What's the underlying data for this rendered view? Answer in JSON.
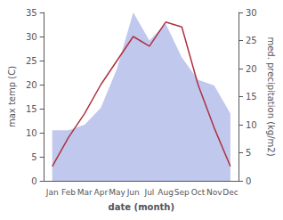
{
  "chart_data": {
    "type": "line",
    "categories": [
      "Jan",
      "Feb",
      "Mar",
      "Apr",
      "May",
      "Jun",
      "Jul",
      "Aug",
      "Sep",
      "Oct",
      "Nov",
      "Dec"
    ],
    "series": [
      {
        "type": "area",
        "color": "#c0c8ee",
        "axis": "y2",
        "values": [
          9,
          9,
          10,
          13,
          20,
          30,
          25,
          28,
          22,
          18,
          17,
          12
        ]
      },
      {
        "type": "line",
        "color": "#b03040",
        "values": [
          3,
          9,
          14,
          20,
          25,
          30,
          28,
          33,
          32,
          20,
          11,
          3
        ]
      }
    ],
    "xlabel": "date (month)",
    "ylabel": "max temp (C)",
    "y2label": "med. precipitation (kg/m2)",
    "ylim": [
      0,
      35
    ],
    "yticks": [
      0,
      5,
      10,
      15,
      20,
      25,
      30,
      35
    ],
    "y2lim": [
      0,
      30
    ],
    "y2ticks": [
      0,
      5,
      10,
      15,
      20,
      25,
      30
    ],
    "grid": false
  }
}
